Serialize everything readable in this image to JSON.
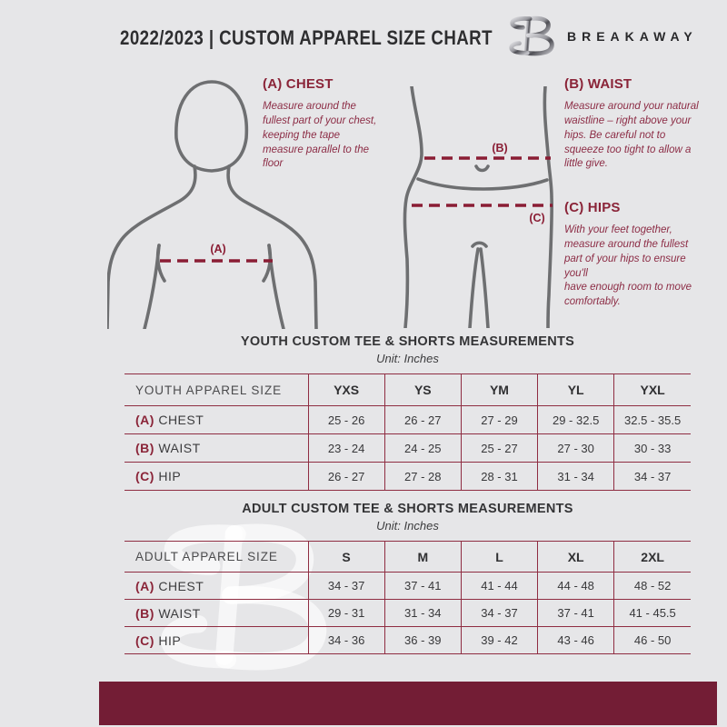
{
  "header": {
    "title": "2022/2023  |  CUSTOM APPAREL SIZE CHART",
    "brand": "BREAKAWAY",
    "logo_mark": "breakaway-b-monogram"
  },
  "diagram_labels": {
    "chest": "(A)",
    "waist": "(B)",
    "hips": "(C)"
  },
  "instructions": [
    {
      "id": "A",
      "heading": "(A) CHEST",
      "text": "Measure around the fullest part of your chest, keeping the tape measure parallel to the floor"
    },
    {
      "id": "B",
      "heading": "(B) WAIST",
      "text": "Measure around your natural waistline – right above your hips. Be careful not to squeeze too tight to allow a little give."
    },
    {
      "id": "C",
      "heading": "(C) HIPS",
      "text": "With your feet together, measure around the fullest part of your hips to ensure you'll\nhave enough room to move comfortably."
    }
  ],
  "youth_table": {
    "title": "YOUTH CUSTOM TEE & SHORTS MEASUREMENTS",
    "unit": "Unit: Inches",
    "header": [
      "YOUTH APPAREL SIZE",
      "YXS",
      "YS",
      "YM",
      "YL",
      "YXL"
    ],
    "rows": [
      {
        "label_prefix": "(A)",
        "label": "CHEST",
        "values": [
          "25 - 26",
          "26 - 27",
          "27 - 29",
          "29 - 32.5",
          "32.5 - 35.5"
        ]
      },
      {
        "label_prefix": "(B)",
        "label": "WAIST",
        "values": [
          "23 - 24",
          "24 - 25",
          "25 - 27",
          "27 - 30",
          "30 - 33"
        ]
      },
      {
        "label_prefix": "(C)",
        "label": "HIP",
        "values": [
          "26 - 27",
          "27 - 28",
          "28 - 31",
          "31 - 34",
          "34 - 37"
        ]
      }
    ]
  },
  "adult_table": {
    "title": "ADULT CUSTOM TEE & SHORTS MEASUREMENTS",
    "unit": "Unit: Inches",
    "header": [
      "ADULT APPAREL SIZE",
      "S",
      "M",
      "L",
      "XL",
      "2XL"
    ],
    "rows": [
      {
        "label_prefix": "(A)",
        "label": "CHEST",
        "values": [
          "34 - 37",
          "37 - 41",
          "41 - 44",
          "44 - 48",
          "48 - 52"
        ]
      },
      {
        "label_prefix": "(B)",
        "label": "WAIST",
        "values": [
          "29 - 31",
          "31 - 34",
          "34 - 37",
          "37 - 41",
          "41 - 45.5"
        ]
      },
      {
        "label_prefix": "(C)",
        "label": "HIP",
        "values": [
          "34 - 36",
          "36 - 39",
          "39 - 42",
          "43 - 46",
          "46 - 50"
        ]
      }
    ]
  },
  "watermark_letter": "B",
  "colors": {
    "background": "#e6e6e8",
    "maroon": "#8a2438",
    "maroon_line": "#8a1d34",
    "maroon_text": "#8c2c45",
    "footer_bar": "#731d35",
    "dark_text": "#343436",
    "figure_gray": "#6e6f71",
    "table_line": "#8f2d42"
  }
}
